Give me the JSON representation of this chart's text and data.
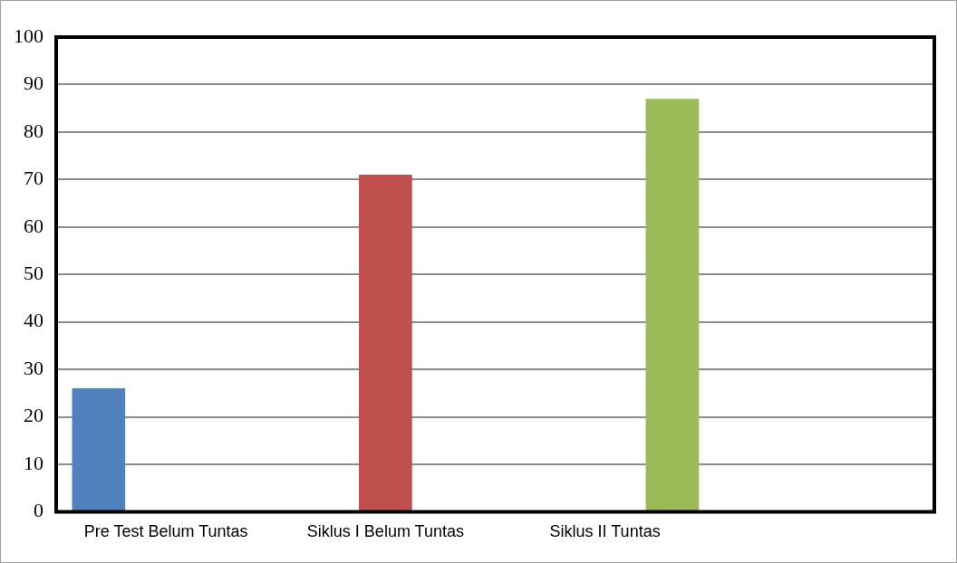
{
  "chart_data": {
    "type": "bar",
    "categories": [
      "Pre Test Belum Tuntas",
      "Siklus I Belum Tuntas",
      "Siklus II Tuntas",
      null
    ],
    "series": [
      {
        "color": "#4f81bd",
        "values": [
          26,
          null,
          null,
          null
        ]
      },
      {
        "color": "#c0504d",
        "values": [
          null,
          71,
          null,
          null
        ]
      },
      {
        "color": "#9bbb59",
        "values": [
          null,
          null,
          87,
          null
        ]
      }
    ],
    "ylim": [
      0,
      100
    ],
    "yticks": [
      0,
      10,
      20,
      30,
      40,
      50,
      60,
      70,
      80,
      90,
      100
    ],
    "grid": "y",
    "legend": false
  }
}
